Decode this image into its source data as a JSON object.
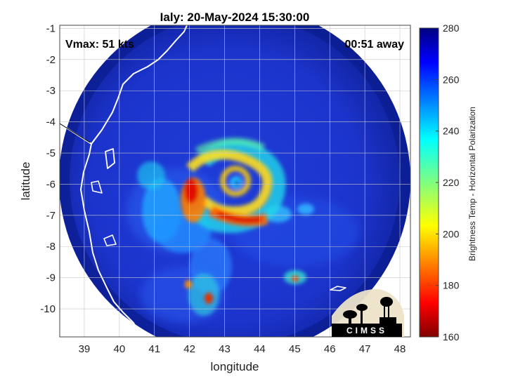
{
  "title": "Ialy: 20-May-2024 15:30:00",
  "overlay": {
    "vmax": "Vmax: 51 kts",
    "eta": "00:51 away"
  },
  "axes": {
    "xlabel": "longitude",
    "ylabel": "latitude",
    "xticks": [
      "39",
      "40",
      "41",
      "42",
      "43",
      "44",
      "45",
      "46",
      "47",
      "48"
    ],
    "yticks": [
      "-1",
      "-2",
      "-3",
      "-4",
      "-5",
      "-6",
      "-7",
      "-8",
      "-9",
      "-10"
    ],
    "xlim": [
      38.3,
      48.3
    ],
    "ylim": [
      -10.9,
      -0.9
    ],
    "grid": true
  },
  "colorbar": {
    "label": "Brightness Temp - Horizontal Polarization",
    "ticks": [
      "280",
      "260",
      "240",
      "220",
      "200",
      "180",
      "160"
    ],
    "range": [
      160,
      280
    ],
    "colormap": "jet"
  },
  "logo": {
    "text": "CIMSS"
  },
  "colors": {
    "background_cold": "#1a2fc8",
    "edge_dark": "#0a1a8a",
    "coastline": "#ffffff"
  }
}
